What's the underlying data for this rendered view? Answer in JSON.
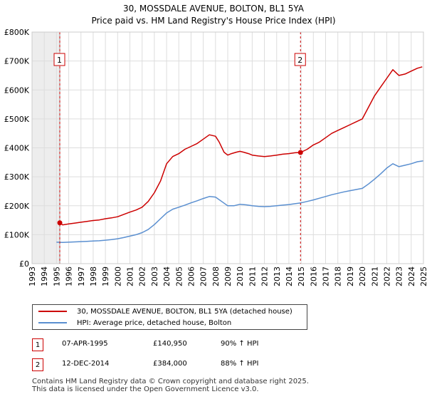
{
  "chart_data": {
    "type": "line",
    "title": "30, MOSSDALE AVENUE, BOLTON, BL1 5YA",
    "subtitle": "Price paid vs. HM Land Registry's House Price Index (HPI)",
    "xlim": [
      1993,
      2025
    ],
    "ylim": [
      0,
      800000
    ],
    "x_ticks": [
      "1993",
      "1994",
      "1995",
      "1996",
      "1997",
      "1998",
      "1999",
      "2000",
      "2001",
      "2002",
      "2003",
      "2004",
      "2005",
      "2006",
      "2007",
      "2008",
      "2009",
      "2010",
      "2011",
      "2012",
      "2013",
      "2014",
      "2015",
      "2016",
      "2017",
      "2018",
      "2019",
      "2020",
      "2021",
      "2022",
      "2023",
      "2024",
      "2025"
    ],
    "y_ticks": [
      {
        "value": 0,
        "label": "£0"
      },
      {
        "value": 100000,
        "label": "£100K"
      },
      {
        "value": 200000,
        "label": "£200K"
      },
      {
        "value": 300000,
        "label": "£300K"
      },
      {
        "value": 400000,
        "label": "£400K"
      },
      {
        "value": 500000,
        "label": "£500K"
      },
      {
        "value": 600000,
        "label": "£600K"
      },
      {
        "value": 700000,
        "label": "£700K"
      },
      {
        "value": 800000,
        "label": "£800K"
      }
    ],
    "grid": true,
    "shaded_region": {
      "x0": 1993,
      "x1": 1995.27
    },
    "series": [
      {
        "name": "30, MOSSDALE AVENUE, BOLTON, BL1 5YA (detached house)",
        "color": "#cc0000",
        "x": [
          1995.27,
          1995.5,
          1996,
          1996.5,
          1997,
          1997.5,
          1998,
          1998.5,
          1999,
          1999.5,
          2000,
          2000.5,
          2001,
          2001.5,
          2002,
          2002.5,
          2003,
          2003.5,
          2004,
          2004.5,
          2005,
          2005.5,
          2006,
          2006.5,
          2007,
          2007.5,
          2008,
          2008.3,
          2008.7,
          2009,
          2009.3,
          2009.7,
          2010,
          2010.3,
          2010.7,
          2011,
          2011.5,
          2012,
          2012.5,
          2013,
          2013.5,
          2014,
          2014.5,
          2014.95,
          2015.5,
          2016,
          2016.5,
          2017,
          2017.5,
          2018,
          2018.5,
          2019,
          2019.5,
          2020,
          2020.5,
          2021,
          2021.5,
          2022,
          2022.5,
          2023,
          2023.5,
          2024,
          2024.5,
          2024.9
        ],
        "y": [
          140950,
          134000,
          137000,
          140000,
          143000,
          146000,
          149000,
          151000,
          155000,
          158000,
          162000,
          170000,
          178000,
          185000,
          195000,
          215000,
          245000,
          285000,
          345000,
          370000,
          380000,
          395000,
          405000,
          415000,
          430000,
          445000,
          440000,
          420000,
          385000,
          375000,
          380000,
          385000,
          388000,
          385000,
          380000,
          375000,
          372000,
          370000,
          372000,
          375000,
          378000,
          380000,
          383000,
          384000,
          395000,
          410000,
          420000,
          435000,
          450000,
          460000,
          470000,
          480000,
          490000,
          500000,
          540000,
          580000,
          610000,
          640000,
          670000,
          650000,
          655000,
          665000,
          675000,
          680000
        ]
      },
      {
        "name": "HPI: Average price, detached house, Bolton",
        "color": "#5a8fd0",
        "x": [
          1995,
          1995.5,
          1996,
          1996.5,
          1997,
          1997.5,
          1998,
          1998.5,
          1999,
          1999.5,
          2000,
          2000.5,
          2001,
          2001.5,
          2002,
          2002.5,
          2003,
          2003.5,
          2004,
          2004.5,
          2005,
          2005.5,
          2006,
          2006.5,
          2007,
          2007.5,
          2008,
          2008.5,
          2009,
          2009.5,
          2010,
          2010.5,
          2011,
          2011.5,
          2012,
          2012.5,
          2013,
          2013.5,
          2014,
          2014.5,
          2015,
          2015.5,
          2016,
          2016.5,
          2017,
          2017.5,
          2018,
          2018.5,
          2019,
          2019.5,
          2020,
          2020.5,
          2021,
          2021.5,
          2022,
          2022.5,
          2023,
          2023.5,
          2024,
          2024.5,
          2025
        ],
        "y": [
          74000,
          73000,
          74000,
          75000,
          76000,
          77000,
          78000,
          79000,
          81000,
          83000,
          86000,
          90000,
          95000,
          100000,
          107000,
          118000,
          135000,
          155000,
          175000,
          188000,
          195000,
          202000,
          210000,
          217000,
          225000,
          232000,
          230000,
          215000,
          200000,
          200000,
          205000,
          203000,
          200000,
          198000,
          197000,
          198000,
          200000,
          202000,
          204000,
          207000,
          210000,
          215000,
          220000,
          226000,
          232000,
          238000,
          243000,
          248000,
          252000,
          256000,
          260000,
          275000,
          292000,
          310000,
          330000,
          345000,
          335000,
          340000,
          345000,
          352000,
          355000
        ]
      }
    ],
    "markers": [
      {
        "label": "1",
        "x": 1995.27,
        "y": 140950
      },
      {
        "label": "2",
        "x": 2014.95,
        "y": 384000
      }
    ]
  },
  "legend": {
    "items": [
      {
        "label": "30, MOSSDALE AVENUE, BOLTON, BL1 5YA (detached house)",
        "color": "#cc0000"
      },
      {
        "label": "HPI: Average price, detached house, Bolton",
        "color": "#5a8fd0"
      }
    ]
  },
  "sales": [
    {
      "num": "1",
      "date": "07-APR-1995",
      "price": "£140,950",
      "hpi": "90% ↑ HPI"
    },
    {
      "num": "2",
      "date": "12-DEC-2014",
      "price": "£384,000",
      "hpi": "88% ↑ HPI"
    }
  ],
  "footer": {
    "line1": "Contains HM Land Registry data © Crown copyright and database right 2025.",
    "line2": "This data is licensed under the Open Government Licence v3.0."
  }
}
